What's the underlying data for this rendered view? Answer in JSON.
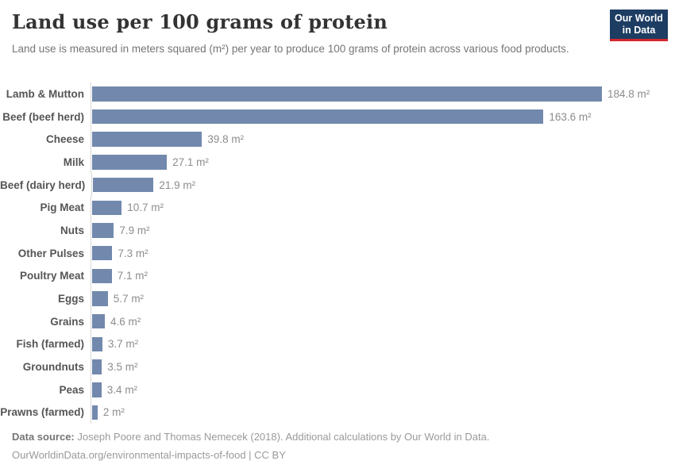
{
  "header": {
    "title": "Land use per 100 grams of protein",
    "subtitle": "Land use is measured in meters squared (m²) per year to produce 100 grams of protein across various food products."
  },
  "logo": {
    "line1": "Our World",
    "line2": "in Data",
    "background_color": "#1d3d63",
    "accent_color": "#d4262c"
  },
  "chart_data": {
    "type": "bar",
    "orientation": "horizontal",
    "title": "Land use per 100 grams of protein",
    "xlabel": "",
    "ylabel": "",
    "unit": "m²",
    "xlim": [
      0,
      184.8
    ],
    "grid": false,
    "bar_color": "#7289ad",
    "categories": [
      "Lamb & Mutton",
      "Beef (beef herd)",
      "Cheese",
      "Milk",
      "Beef (dairy herd)",
      "Pig Meat",
      "Nuts",
      "Other Pulses",
      "Poultry Meat",
      "Eggs",
      "Grains",
      "Fish (farmed)",
      "Groundnuts",
      "Peas",
      "Prawns (farmed)"
    ],
    "values": [
      184.8,
      163.6,
      39.8,
      27.1,
      21.9,
      10.7,
      7.9,
      7.3,
      7.1,
      5.7,
      4.6,
      3.7,
      3.5,
      3.4,
      2
    ],
    "value_labels": [
      "184.8 m²",
      "163.6 m²",
      "39.8 m²",
      "27.1 m²",
      "21.9 m²",
      "10.7 m²",
      "7.9 m²",
      "7.3 m²",
      "7.1 m²",
      "5.7 m²",
      "4.6 m²",
      "3.7 m²",
      "3.5 m²",
      "3.4 m²",
      "2 m²"
    ]
  },
  "footer": {
    "source_label": "Data source:",
    "source_text": "Joseph Poore and Thomas Nemecek (2018). Additional calculations by Our World in Data.",
    "link_text": "OurWorldinData.org/environmental-impacts-of-food | CC BY"
  }
}
